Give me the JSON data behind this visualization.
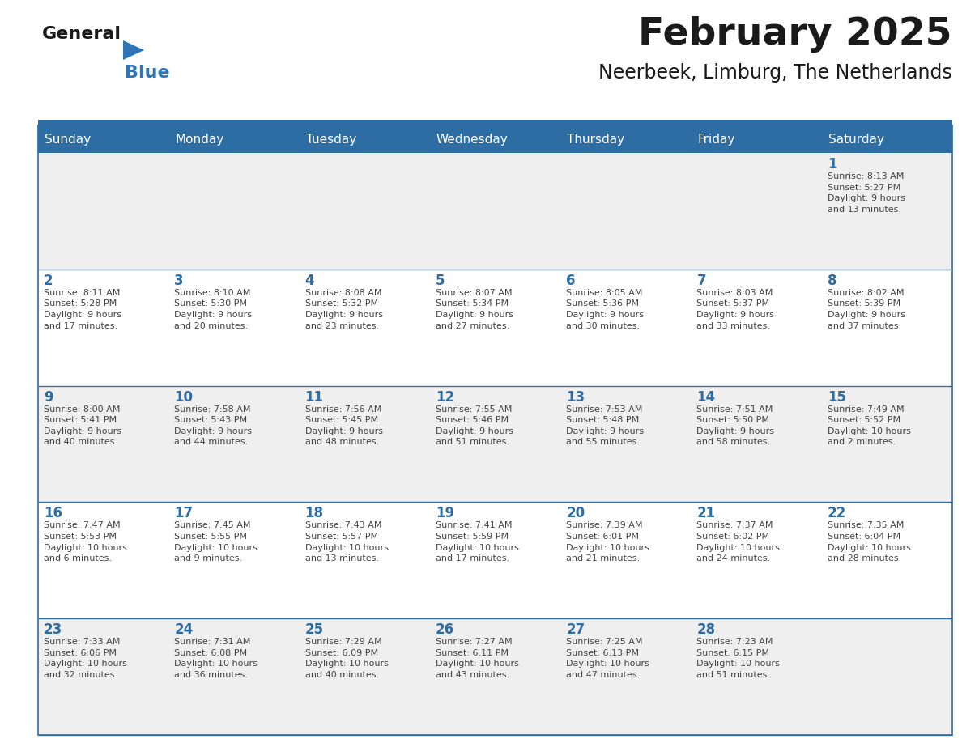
{
  "title": "February 2025",
  "subtitle": "Neerbeek, Limburg, The Netherlands",
  "days_of_week": [
    "Sunday",
    "Monday",
    "Tuesday",
    "Wednesday",
    "Thursday",
    "Friday",
    "Saturday"
  ],
  "header_bg": "#2E6DA4",
  "header_text": "#FFFFFF",
  "cell_bg_light": "#EFEFEF",
  "cell_bg_white": "#FFFFFF",
  "line_color": "#2E6DA4",
  "day_number_color": "#2E6DA4",
  "text_color": "#444444",
  "title_color": "#1a1a1a",
  "logo_general_color": "#1a1a1a",
  "logo_blue_color": "#2E75B6",
  "calendar_data": [
    [
      {
        "day": null,
        "info": ""
      },
      {
        "day": null,
        "info": ""
      },
      {
        "day": null,
        "info": ""
      },
      {
        "day": null,
        "info": ""
      },
      {
        "day": null,
        "info": ""
      },
      {
        "day": null,
        "info": ""
      },
      {
        "day": 1,
        "info": "Sunrise: 8:13 AM\nSunset: 5:27 PM\nDaylight: 9 hours\nand 13 minutes."
      }
    ],
    [
      {
        "day": 2,
        "info": "Sunrise: 8:11 AM\nSunset: 5:28 PM\nDaylight: 9 hours\nand 17 minutes."
      },
      {
        "day": 3,
        "info": "Sunrise: 8:10 AM\nSunset: 5:30 PM\nDaylight: 9 hours\nand 20 minutes."
      },
      {
        "day": 4,
        "info": "Sunrise: 8:08 AM\nSunset: 5:32 PM\nDaylight: 9 hours\nand 23 minutes."
      },
      {
        "day": 5,
        "info": "Sunrise: 8:07 AM\nSunset: 5:34 PM\nDaylight: 9 hours\nand 27 minutes."
      },
      {
        "day": 6,
        "info": "Sunrise: 8:05 AM\nSunset: 5:36 PM\nDaylight: 9 hours\nand 30 minutes."
      },
      {
        "day": 7,
        "info": "Sunrise: 8:03 AM\nSunset: 5:37 PM\nDaylight: 9 hours\nand 33 minutes."
      },
      {
        "day": 8,
        "info": "Sunrise: 8:02 AM\nSunset: 5:39 PM\nDaylight: 9 hours\nand 37 minutes."
      }
    ],
    [
      {
        "day": 9,
        "info": "Sunrise: 8:00 AM\nSunset: 5:41 PM\nDaylight: 9 hours\nand 40 minutes."
      },
      {
        "day": 10,
        "info": "Sunrise: 7:58 AM\nSunset: 5:43 PM\nDaylight: 9 hours\nand 44 minutes."
      },
      {
        "day": 11,
        "info": "Sunrise: 7:56 AM\nSunset: 5:45 PM\nDaylight: 9 hours\nand 48 minutes."
      },
      {
        "day": 12,
        "info": "Sunrise: 7:55 AM\nSunset: 5:46 PM\nDaylight: 9 hours\nand 51 minutes."
      },
      {
        "day": 13,
        "info": "Sunrise: 7:53 AM\nSunset: 5:48 PM\nDaylight: 9 hours\nand 55 minutes."
      },
      {
        "day": 14,
        "info": "Sunrise: 7:51 AM\nSunset: 5:50 PM\nDaylight: 9 hours\nand 58 minutes."
      },
      {
        "day": 15,
        "info": "Sunrise: 7:49 AM\nSunset: 5:52 PM\nDaylight: 10 hours\nand 2 minutes."
      }
    ],
    [
      {
        "day": 16,
        "info": "Sunrise: 7:47 AM\nSunset: 5:53 PM\nDaylight: 10 hours\nand 6 minutes."
      },
      {
        "day": 17,
        "info": "Sunrise: 7:45 AM\nSunset: 5:55 PM\nDaylight: 10 hours\nand 9 minutes."
      },
      {
        "day": 18,
        "info": "Sunrise: 7:43 AM\nSunset: 5:57 PM\nDaylight: 10 hours\nand 13 minutes."
      },
      {
        "day": 19,
        "info": "Sunrise: 7:41 AM\nSunset: 5:59 PM\nDaylight: 10 hours\nand 17 minutes."
      },
      {
        "day": 20,
        "info": "Sunrise: 7:39 AM\nSunset: 6:01 PM\nDaylight: 10 hours\nand 21 minutes."
      },
      {
        "day": 21,
        "info": "Sunrise: 7:37 AM\nSunset: 6:02 PM\nDaylight: 10 hours\nand 24 minutes."
      },
      {
        "day": 22,
        "info": "Sunrise: 7:35 AM\nSunset: 6:04 PM\nDaylight: 10 hours\nand 28 minutes."
      }
    ],
    [
      {
        "day": 23,
        "info": "Sunrise: 7:33 AM\nSunset: 6:06 PM\nDaylight: 10 hours\nand 32 minutes."
      },
      {
        "day": 24,
        "info": "Sunrise: 7:31 AM\nSunset: 6:08 PM\nDaylight: 10 hours\nand 36 minutes."
      },
      {
        "day": 25,
        "info": "Sunrise: 7:29 AM\nSunset: 6:09 PM\nDaylight: 10 hours\nand 40 minutes."
      },
      {
        "day": 26,
        "info": "Sunrise: 7:27 AM\nSunset: 6:11 PM\nDaylight: 10 hours\nand 43 minutes."
      },
      {
        "day": 27,
        "info": "Sunrise: 7:25 AM\nSunset: 6:13 PM\nDaylight: 10 hours\nand 47 minutes."
      },
      {
        "day": 28,
        "info": "Sunrise: 7:23 AM\nSunset: 6:15 PM\nDaylight: 10 hours\nand 51 minutes."
      },
      {
        "day": null,
        "info": ""
      }
    ]
  ]
}
